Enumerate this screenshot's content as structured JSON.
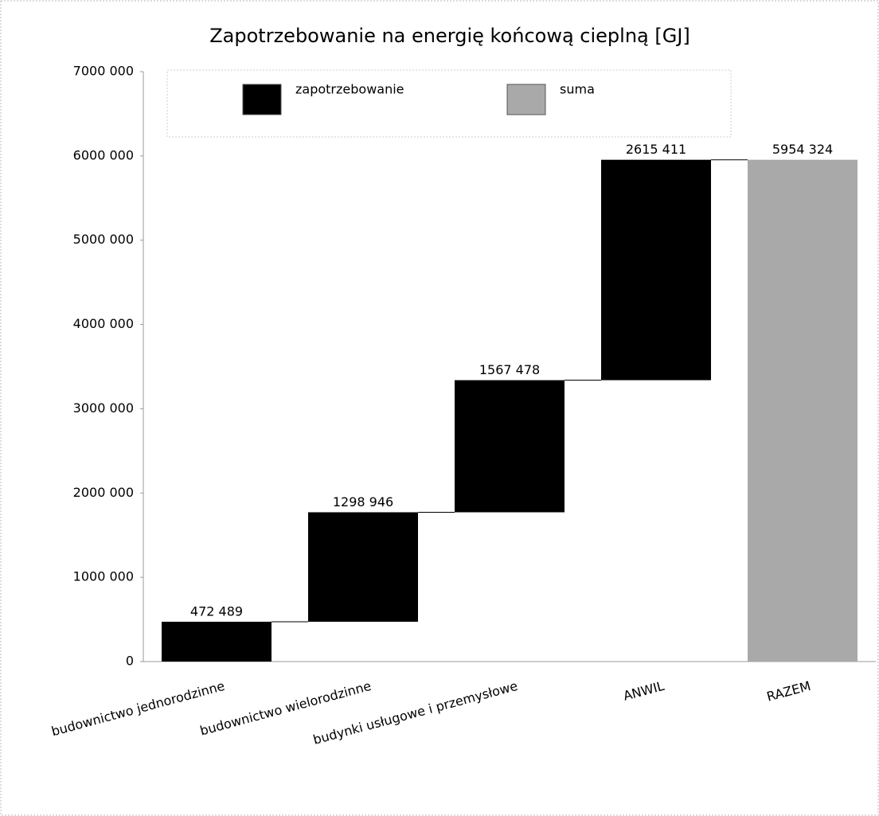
{
  "chart_data": {
    "type": "waterfall",
    "title": "Zapotrzebowanie na energię końcową cieplną [GJ]",
    "categories": [
      "budownictwo jednorodzinne",
      "budownictwo wielorodzinne",
      "budynki usługowe i przemysłowe",
      "ANWIL",
      "RAZEM"
    ],
    "series": [
      {
        "name": "zapotrzebowanie",
        "color": "#000000",
        "values": [
          472489,
          1298946,
          1567478,
          2615411,
          null
        ],
        "value_labels": [
          "472 489",
          "1298 946",
          "1567 478",
          "2615 411",
          null
        ]
      },
      {
        "name": "suma",
        "color": "#a9a9a9",
        "values": [
          null,
          null,
          null,
          null,
          5954324
        ],
        "value_labels": [
          null,
          null,
          null,
          null,
          "5954 324"
        ]
      }
    ],
    "ylim": [
      0,
      7000000
    ],
    "yticks": [
      {
        "value": 0,
        "label": "0"
      },
      {
        "value": 1000000,
        "label": "1000 000"
      },
      {
        "value": 2000000,
        "label": "2000 000"
      },
      {
        "value": 3000000,
        "label": "3000 000"
      },
      {
        "value": 4000000,
        "label": "4000 000"
      },
      {
        "value": 5000000,
        "label": "5000 000"
      },
      {
        "value": 6000000,
        "label": "6000 000"
      },
      {
        "value": 7000000,
        "label": "7000 000"
      }
    ],
    "legend": "top"
  }
}
